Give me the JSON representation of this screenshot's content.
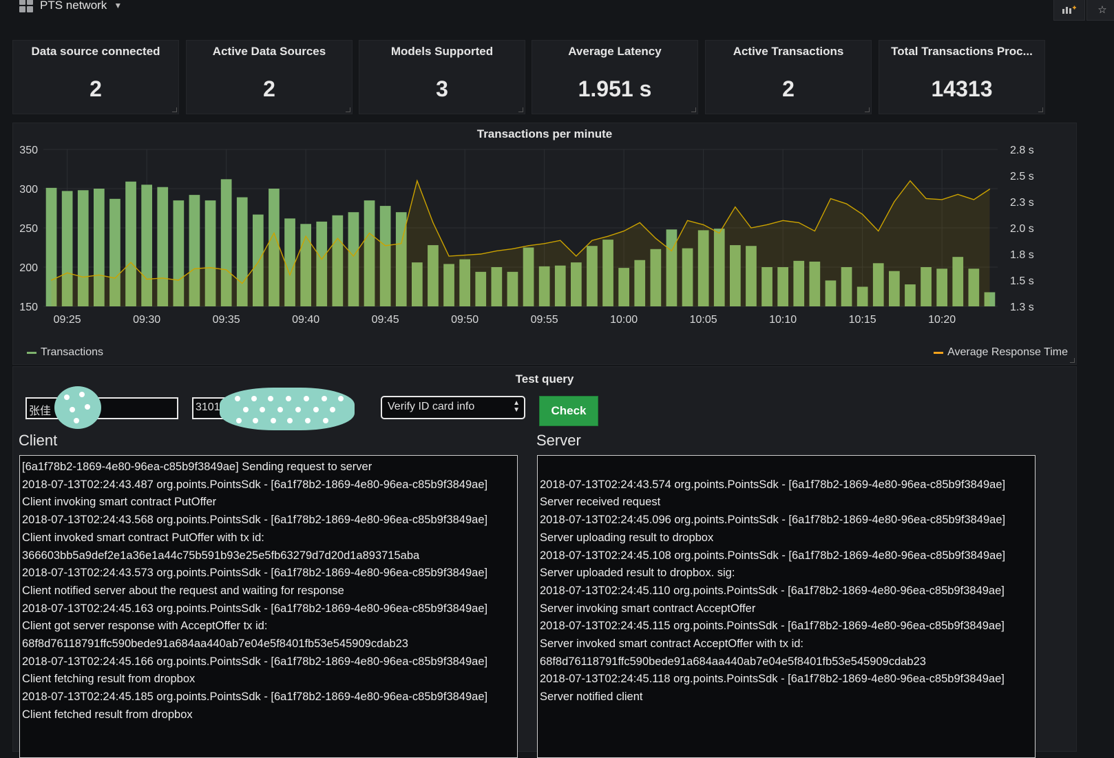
{
  "topbar": {
    "dashboard_title": "PTS network"
  },
  "stats": [
    {
      "title": "Data source connected",
      "value": "2"
    },
    {
      "title": "Active Data Sources",
      "value": "2"
    },
    {
      "title": "Models Supported",
      "value": "3"
    },
    {
      "title": "Average Latency",
      "value": "1.951 s"
    },
    {
      "title": "Active Transactions",
      "value": "2"
    },
    {
      "title": "Total Transactions Proc...",
      "value": "14313"
    }
  ],
  "chart_data": {
    "type": "bar",
    "title": "Transactions per minute",
    "x": [
      "09:24",
      "09:25",
      "09:26",
      "09:27",
      "09:28",
      "09:29",
      "09:30",
      "09:31",
      "09:32",
      "09:33",
      "09:34",
      "09:35",
      "09:36",
      "09:37",
      "09:38",
      "09:39",
      "09:40",
      "09:41",
      "09:42",
      "09:43",
      "09:44",
      "09:45",
      "09:46",
      "09:47",
      "09:48",
      "09:49",
      "09:50",
      "09:51",
      "09:52",
      "09:53",
      "09:54",
      "09:55",
      "09:56",
      "09:57",
      "09:58",
      "09:59",
      "10:00",
      "10:01",
      "10:02",
      "10:03",
      "10:04",
      "10:05",
      "10:06",
      "10:07",
      "10:08",
      "10:09",
      "10:10",
      "10:11",
      "10:12",
      "10:13",
      "10:14",
      "10:15",
      "10:16",
      "10:17",
      "10:18",
      "10:19",
      "10:20",
      "10:21",
      "10:22",
      "10:23"
    ],
    "x_tick_labels": [
      "09:25",
      "09:30",
      "09:35",
      "09:40",
      "09:45",
      "09:50",
      "09:55",
      "10:00",
      "10:05",
      "10:10",
      "10:15",
      "10:20"
    ],
    "series": [
      {
        "name": "Transactions",
        "type": "bar",
        "axis": "left",
        "color": "#7eb26d",
        "values": [
          301,
          297,
          298,
          300,
          287,
          309,
          305,
          302,
          285,
          292,
          285,
          312,
          289,
          267,
          300,
          262,
          255,
          258,
          266,
          270,
          285,
          278,
          270,
          206,
          228,
          204,
          210,
          194,
          200,
          194,
          225,
          201,
          202,
          206,
          227,
          235,
          199,
          209,
          223,
          248,
          224,
          247,
          249,
          228,
          227,
          200,
          200,
          208,
          207,
          183,
          200,
          175,
          205,
          195,
          178,
          200,
          198,
          213,
          198,
          168
        ],
        "shown_values_range_note": null
      },
      {
        "name": "Average Response Time",
        "type": "area",
        "axis": "right",
        "color": "#cca300",
        "values": [
          1.55,
          1.62,
          1.58,
          1.6,
          1.57,
          1.72,
          1.56,
          1.57,
          1.55,
          1.66,
          1.67,
          1.65,
          1.52,
          1.72,
          2.0,
          1.6,
          1.97,
          1.75,
          1.95,
          1.78,
          2.0,
          1.88,
          1.9,
          2.5,
          2.1,
          1.78,
          1.79,
          1.8,
          1.83,
          1.85,
          1.88,
          1.9,
          1.93,
          1.78,
          1.93,
          1.97,
          2.02,
          2.1,
          1.95,
          1.83,
          2.12,
          2.08,
          2.0,
          2.25,
          2.05,
          2.08,
          2.12,
          2.1,
          2.02,
          2.33,
          2.28,
          2.18,
          2.02,
          2.3,
          2.5,
          2.33,
          2.32,
          2.37,
          2.32,
          2.42
        ]
      }
    ],
    "y_left": {
      "min": 150,
      "max": 350,
      "ticks": [
        "150",
        "200",
        "250",
        "300",
        "350"
      ]
    },
    "y_right": {
      "min": 1.3,
      "max": 2.8,
      "ticks": [
        "1.3 s",
        "1.5 s",
        "1.8 s",
        "2.0 s",
        "2.3 s",
        "2.5 s",
        "2.8 s"
      ]
    },
    "grid": true,
    "legend": {
      "left": "Transactions",
      "right": "Average Response Time"
    }
  },
  "test_query": {
    "title": "Test query",
    "name_value": "张佳",
    "id_value": "3101",
    "select_value": "Verify ID card info",
    "check_label": "Check"
  },
  "client": {
    "heading": "Client",
    "lines": [
      "[6a1f78b2-1869-4e80-96ea-c85b9f3849ae] Sending request to server",
      "2018-07-13T02:24:43.487 org.points.PointsSdk - [6a1f78b2-1869-4e80-96ea-c85b9f3849ae]",
      "Client invoking smart contract PutOffer",
      "2018-07-13T02:24:43.568 org.points.PointsSdk - [6a1f78b2-1869-4e80-96ea-c85b9f3849ae]",
      "Client invoked smart contract PutOffer with tx id:",
      "366603bb5a9def2e1a36e1a44c75b591b93e25e5fb63279d7d20d1a893715aba",
      "2018-07-13T02:24:43.573 org.points.PointsSdk - [6a1f78b2-1869-4e80-96ea-c85b9f3849ae]",
      "Client notified server about the request and waiting for response",
      "2018-07-13T02:24:45.163 org.points.PointsSdk - [6a1f78b2-1869-4e80-96ea-c85b9f3849ae]",
      "Client got server response with AcceptOffer tx id:",
      "68f8d76118791ffc590bede91a684aa440ab7e04e5f8401fb53e545909cdab23",
      "2018-07-13T02:24:45.166 org.points.PointsSdk - [6a1f78b2-1869-4e80-96ea-c85b9f3849ae]",
      "Client fetching result from dropbox",
      "2018-07-13T02:24:45.185 org.points.PointsSdk - [6a1f78b2-1869-4e80-96ea-c85b9f3849ae]",
      "Client fetched result from dropbox"
    ]
  },
  "server": {
    "heading": "Server",
    "lines": [
      "",
      "2018-07-13T02:24:43.574 org.points.PointsSdk - [6a1f78b2-1869-4e80-96ea-c85b9f3849ae]",
      "Server received request",
      "2018-07-13T02:24:45.096 org.points.PointsSdk - [6a1f78b2-1869-4e80-96ea-c85b9f3849ae]",
      "Server uploading result to dropbox",
      "2018-07-13T02:24:45.108 org.points.PointsSdk - [6a1f78b2-1869-4e80-96ea-c85b9f3849ae]",
      "Server uploaded result to dropbox. sig:",
      "2018-07-13T02:24:45.110 org.points.PointsSdk - [6a1f78b2-1869-4e80-96ea-c85b9f3849ae]",
      "Server invoking smart contract AcceptOffer",
      "2018-07-13T02:24:45.115 org.points.PointsSdk - [6a1f78b2-1869-4e80-96ea-c85b9f3849ae]",
      "Server invoked smart contract AcceptOffer with tx id:",
      "68f8d76118791ffc590bede91a684aa440ab7e04e5f8401fb53e545909cdab23",
      "2018-07-13T02:24:45.118 org.points.PointsSdk - [6a1f78b2-1869-4e80-96ea-c85b9f3849ae]",
      "Server notified client"
    ]
  },
  "icons": {
    "grid": "dashboard-grid-icon",
    "add_panel": "add-panel-icon",
    "star": "star-icon"
  }
}
